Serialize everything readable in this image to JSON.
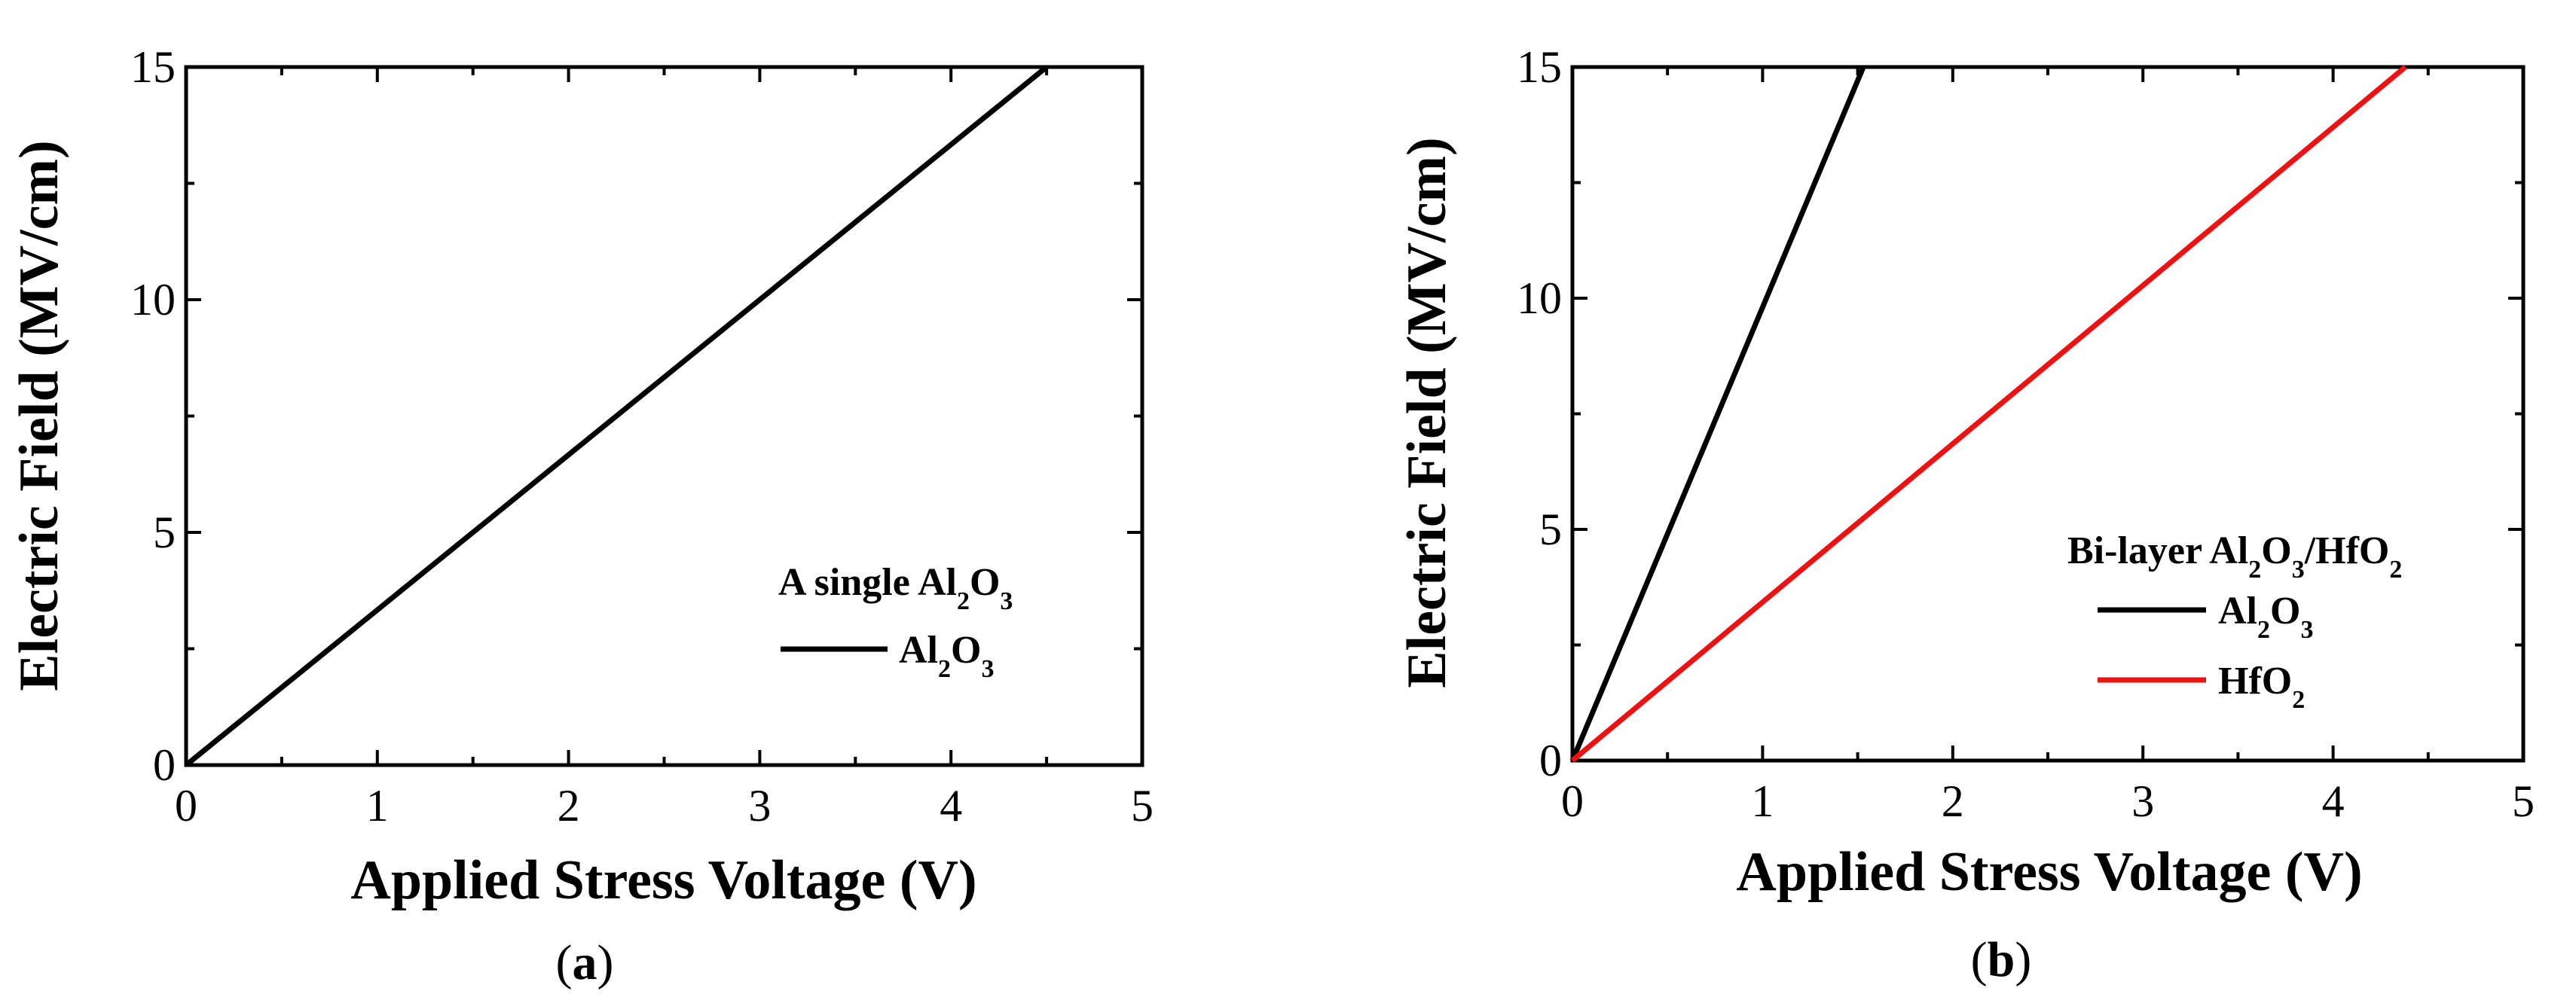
{
  "chart_data": [
    {
      "type": "line",
      "panel_label": [
        "(",
        "a",
        ")"
      ],
      "xlabel": "Applied Stress Voltage (V)",
      "ylabel": "Electric Field (MV/cm)",
      "xlim": [
        0,
        5
      ],
      "ylim": [
        0,
        15
      ],
      "xticks": [
        0,
        1,
        2,
        3,
        4,
        5
      ],
      "yticks": [
        0,
        5,
        10,
        15
      ],
      "grid": false,
      "legend_title": [
        "A single Al",
        "2",
        "O",
        "3"
      ],
      "legend_placement": "right, lower-middle",
      "series": [
        {
          "name": [
            "Al",
            "2",
            "O",
            "3"
          ],
          "color": "#000000",
          "x": [
            0,
            4.5
          ],
          "y": [
            0,
            15
          ]
        }
      ]
    },
    {
      "type": "line",
      "panel_label": [
        "(",
        "b",
        ")"
      ],
      "xlabel": "Applied Stress Voltage (V)",
      "ylabel": "Electric Field (MV/cm)",
      "xlim": [
        0,
        5
      ],
      "ylim": [
        0,
        15
      ],
      "xticks": [
        0,
        1,
        2,
        3,
        4,
        5
      ],
      "yticks": [
        0,
        5,
        10,
        15
      ],
      "grid": false,
      "legend_title": [
        "Bi-layer Al",
        "2",
        "O",
        "3",
        "/HfO",
        "2"
      ],
      "legend_placement": "right, lower-middle",
      "series": [
        {
          "name": [
            "Al",
            "2",
            "O",
            "3"
          ],
          "color": "#000000",
          "x": [
            0,
            1.53
          ],
          "y": [
            0,
            15
          ]
        },
        {
          "name": [
            "HfO",
            "2"
          ],
          "color": "#ee1111",
          "x": [
            0,
            4.38
          ],
          "y": [
            0,
            15
          ]
        }
      ]
    }
  ]
}
